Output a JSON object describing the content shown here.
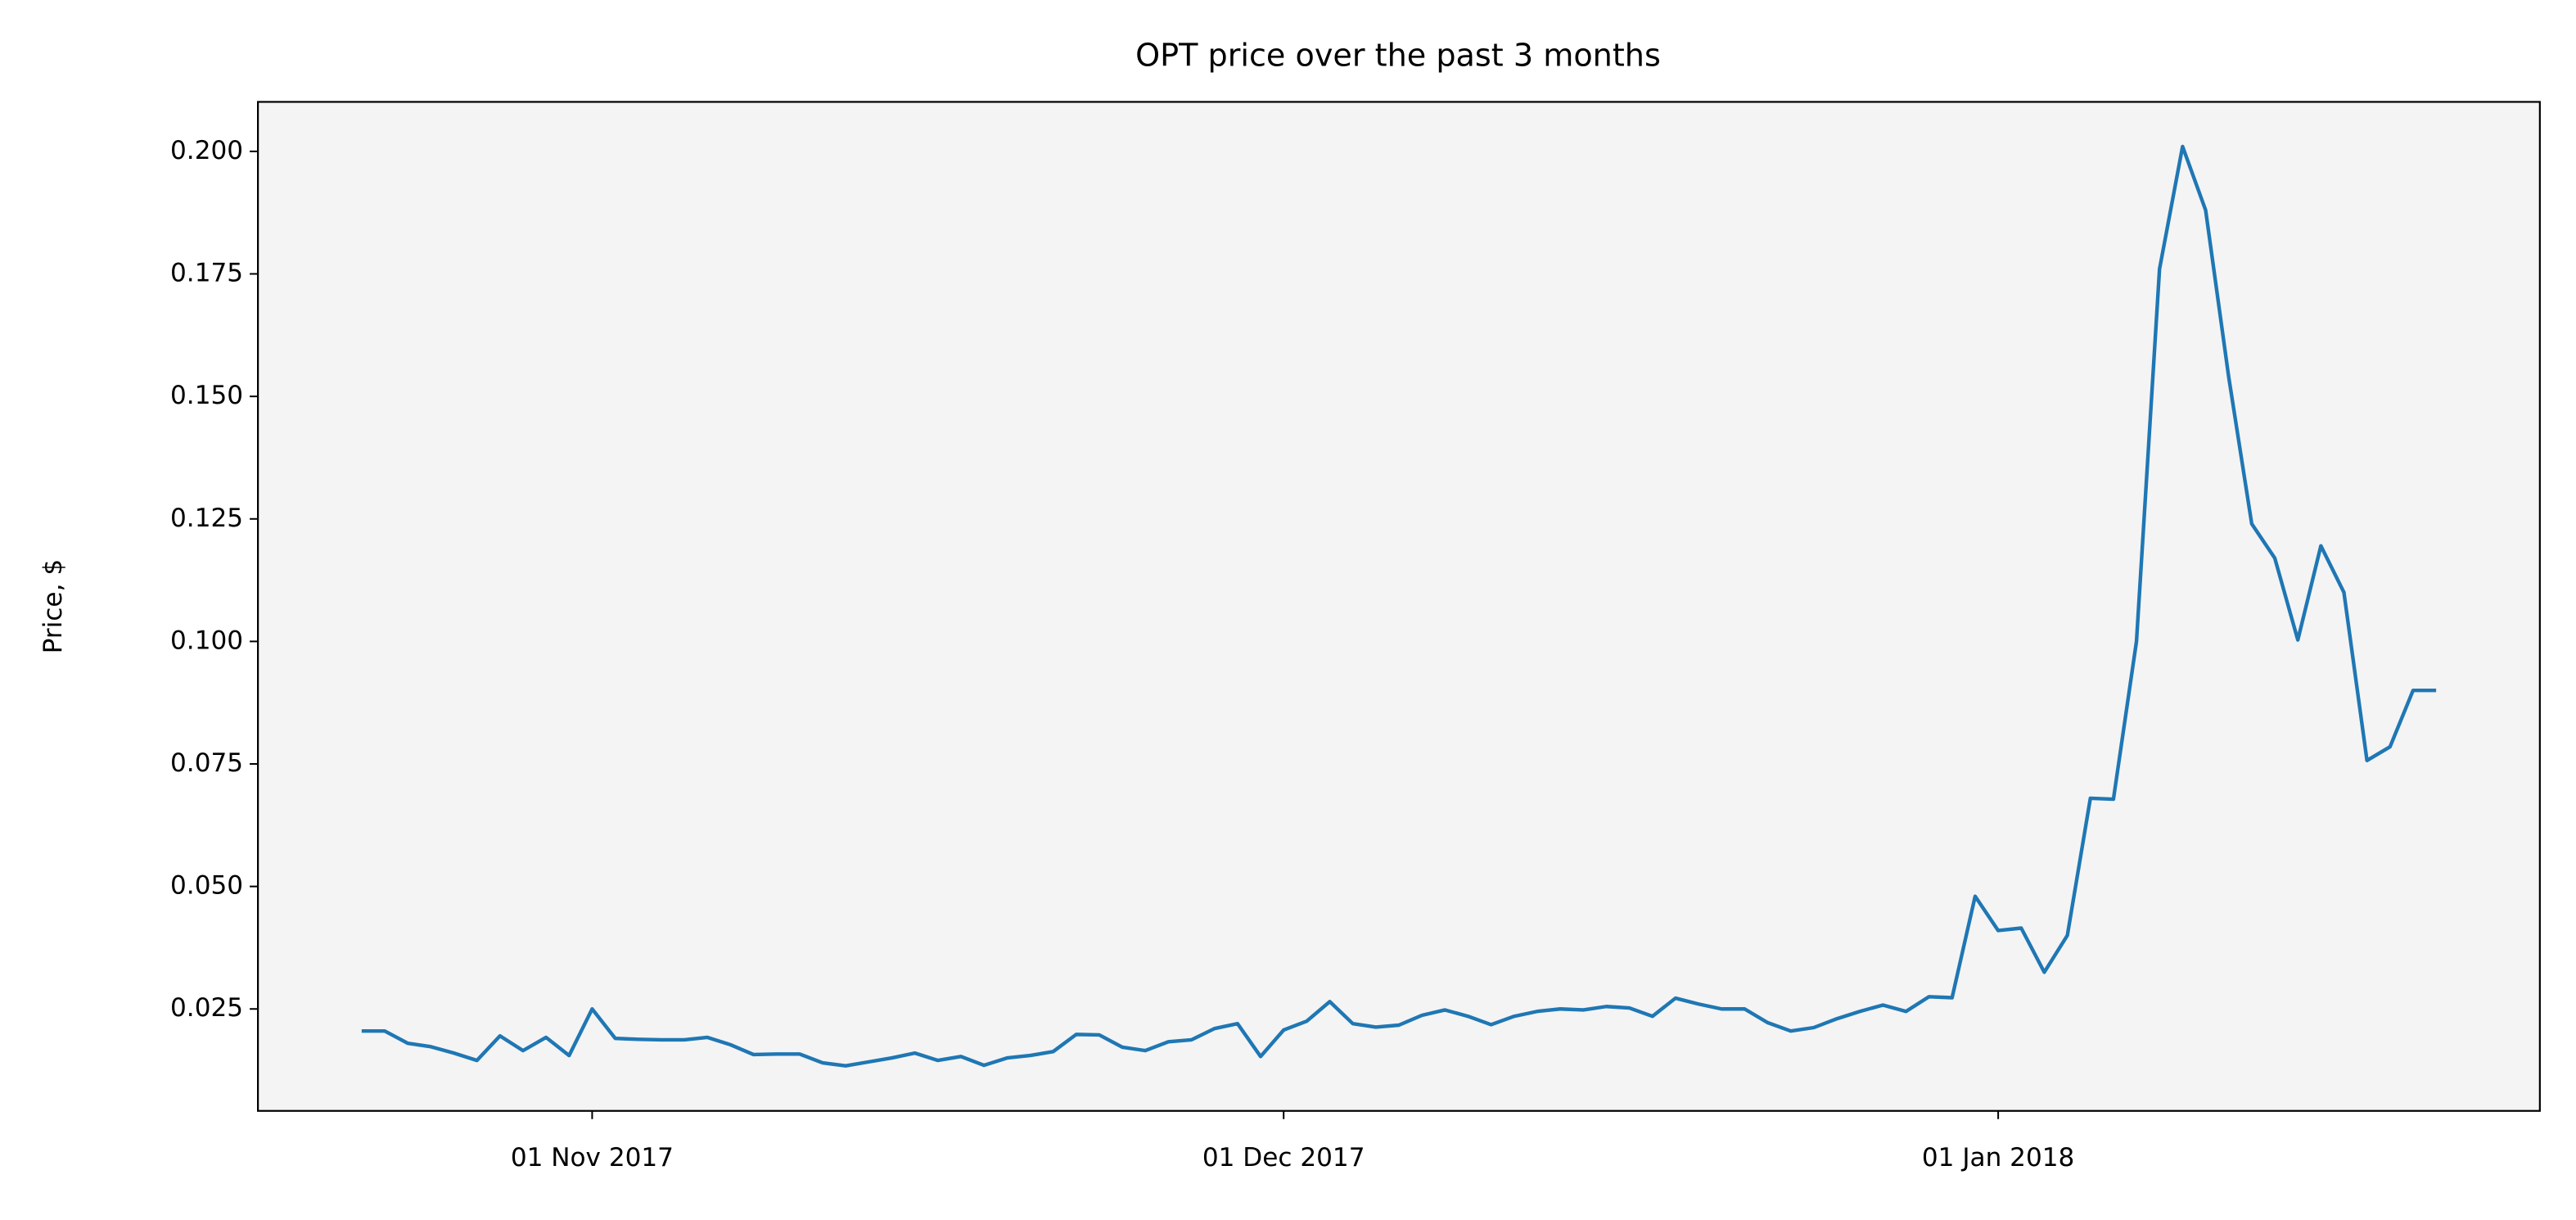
{
  "chart_data": {
    "type": "line",
    "title": "OPT price over the past 3 months",
    "ylabel": "Price, $",
    "x": [
      "2017-10-22",
      "2017-10-23",
      "2017-10-24",
      "2017-10-25",
      "2017-10-26",
      "2017-10-27",
      "2017-10-28",
      "2017-10-29",
      "2017-10-30",
      "2017-10-31",
      "2017-11-01",
      "2017-11-02",
      "2017-11-03",
      "2017-11-04",
      "2017-11-05",
      "2017-11-06",
      "2017-11-07",
      "2017-11-08",
      "2017-11-09",
      "2017-11-10",
      "2017-11-11",
      "2017-11-12",
      "2017-11-13",
      "2017-11-14",
      "2017-11-15",
      "2017-11-16",
      "2017-11-17",
      "2017-11-18",
      "2017-11-19",
      "2017-11-20",
      "2017-11-21",
      "2017-11-22",
      "2017-11-23",
      "2017-11-24",
      "2017-11-25",
      "2017-11-26",
      "2017-11-27",
      "2017-11-28",
      "2017-11-29",
      "2017-11-30",
      "2017-12-01",
      "2017-12-02",
      "2017-12-03",
      "2017-12-04",
      "2017-12-05",
      "2017-12-06",
      "2017-12-07",
      "2017-12-08",
      "2017-12-09",
      "2017-12-10",
      "2017-12-11",
      "2017-12-12",
      "2017-12-13",
      "2017-12-14",
      "2017-12-15",
      "2017-12-16",
      "2017-12-17",
      "2017-12-18",
      "2017-12-19",
      "2017-12-20",
      "2017-12-21",
      "2017-12-22",
      "2017-12-23",
      "2017-12-24",
      "2017-12-25",
      "2017-12-26",
      "2017-12-27",
      "2017-12-28",
      "2017-12-29",
      "2017-12-30",
      "2017-12-31",
      "2018-01-01",
      "2018-01-02",
      "2018-01-03",
      "2018-01-04",
      "2018-01-05",
      "2018-01-06",
      "2018-01-07",
      "2018-01-08",
      "2018-01-09",
      "2018-01-10",
      "2018-01-11",
      "2018-01-12",
      "2018-01-13",
      "2018-01-14",
      "2018-01-15",
      "2018-01-16",
      "2018-01-17",
      "2018-01-18",
      "2018-01-19",
      "2018-01-20"
    ],
    "series": [
      {
        "name": "OPT",
        "color": "#1f77b4",
        "values": [
          0.0205,
          0.0205,
          0.018,
          0.0173,
          0.016,
          0.0145,
          0.0195,
          0.0165,
          0.0192,
          0.0155,
          0.025,
          0.019,
          0.0188,
          0.0187,
          0.0187,
          0.0192,
          0.0177,
          0.0157,
          0.0158,
          0.0158,
          0.014,
          0.0134,
          0.0142,
          0.015,
          0.016,
          0.0145,
          0.0153,
          0.0135,
          0.015,
          0.0155,
          0.0163,
          0.0198,
          0.0197,
          0.0172,
          0.0165,
          0.0183,
          0.0187,
          0.021,
          0.022,
          0.0153,
          0.0207,
          0.0225,
          0.0265,
          0.022,
          0.0213,
          0.0217,
          0.0237,
          0.0248,
          0.0235,
          0.0218,
          0.0235,
          0.0245,
          0.025,
          0.0248,
          0.0255,
          0.0252,
          0.0235,
          0.0272,
          0.026,
          0.025,
          0.025,
          0.0222,
          0.0205,
          0.0212,
          0.023,
          0.0245,
          0.0258,
          0.0245,
          0.0275,
          0.0273,
          0.048,
          0.041,
          0.0415,
          0.0325,
          0.04,
          0.068,
          0.0678,
          0.1,
          0.176,
          0.201,
          0.188,
          0.154,
          0.124,
          0.117,
          0.1003,
          0.1195,
          0.11,
          0.0757,
          0.0785,
          0.09,
          0.09
        ]
      }
    ],
    "xlim": [
      "2017-10-17T12:00",
      "2018-01-24T12:00"
    ],
    "xticks": [
      {
        "value": "2017-11-01",
        "label": "01 Nov 2017"
      },
      {
        "value": "2017-12-01",
        "label": "01 Dec 2017"
      },
      {
        "value": "2018-01-01",
        "label": "01 Jan 2018"
      }
    ],
    "ylim": [
      0.0042,
      0.2101
    ],
    "yticks": [
      {
        "value": 0.025,
        "label": "0.025"
      },
      {
        "value": 0.05,
        "label": "0.050"
      },
      {
        "value": 0.075,
        "label": "0.075"
      },
      {
        "value": 0.1,
        "label": "0.100"
      },
      {
        "value": 0.125,
        "label": "0.125"
      },
      {
        "value": 0.15,
        "label": "0.150"
      },
      {
        "value": 0.175,
        "label": "0.175"
      },
      {
        "value": 0.2,
        "label": "0.200"
      }
    ],
    "background": "#f4f4f4",
    "grid": false
  }
}
